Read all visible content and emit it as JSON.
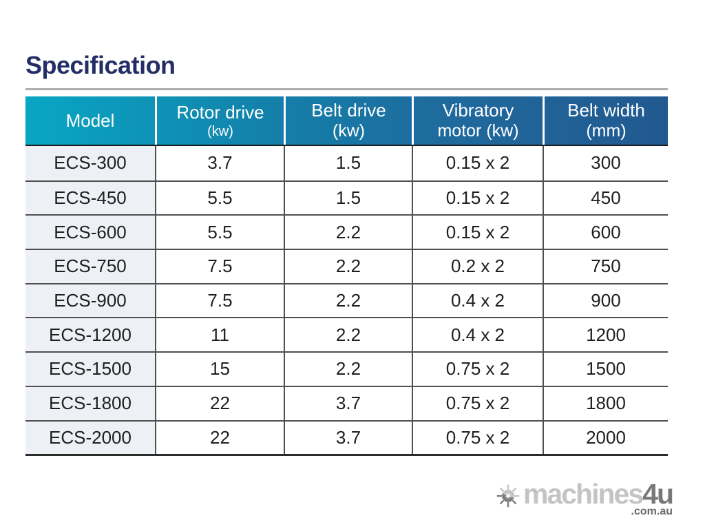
{
  "page": {
    "title": "Specification"
  },
  "table": {
    "columns": [
      {
        "id": "model",
        "label": "Model",
        "sub": "",
        "sub_small": false
      },
      {
        "id": "rotor-drive",
        "label": "Rotor drive",
        "sub": "(kw)",
        "sub_small": true
      },
      {
        "id": "belt-drive",
        "label": "Belt drive",
        "sub": "(kw)",
        "sub_small": false
      },
      {
        "id": "vibratory-motor",
        "label": "Vibratory",
        "sub": "motor (kw)",
        "sub_small": false
      },
      {
        "id": "belt-width",
        "label": "Belt width",
        "sub": "(mm)",
        "sub_small": false
      }
    ],
    "rows": [
      [
        "ECS-300",
        "3.7",
        "1.5",
        "0.15 x 2",
        "300"
      ],
      [
        "ECS-450",
        "5.5",
        "1.5",
        "0.15 x 2",
        "450"
      ],
      [
        "ECS-600",
        "5.5",
        "2.2",
        "0.15 x 2",
        "600"
      ],
      [
        "ECS-750",
        "7.5",
        "2.2",
        "0.2 x 2",
        "750"
      ],
      [
        "ECS-900",
        "7.5",
        "2.2",
        "0.4 x 2",
        "900"
      ],
      [
        "ECS-1200",
        "11",
        "2.2",
        "0.4 x 2",
        "1200"
      ],
      [
        "ECS-1500",
        "15",
        "2.2",
        "0.75 x 2",
        "1500"
      ],
      [
        "ECS-1800",
        "22",
        "3.7",
        "0.75 x 2",
        "1800"
      ],
      [
        "ECS-2000",
        "22",
        "3.7",
        "0.75 x 2",
        "2000"
      ]
    ]
  },
  "watermark": {
    "brand": "machines",
    "brand_suffix": "4u",
    "domain": ".com.au"
  },
  "colors": {
    "title_navy": "#232e66",
    "header_gradient_start": "#08a6c3",
    "header_gradient_end": "#215990",
    "header_text": "#ffffff",
    "row_line": "#4f4f4f",
    "model_column_bg": "#edf1f6",
    "cell_text": "#1f1f1f",
    "logo_light_gray": "#c4c4c4",
    "logo_dark_gray": "#787878"
  }
}
